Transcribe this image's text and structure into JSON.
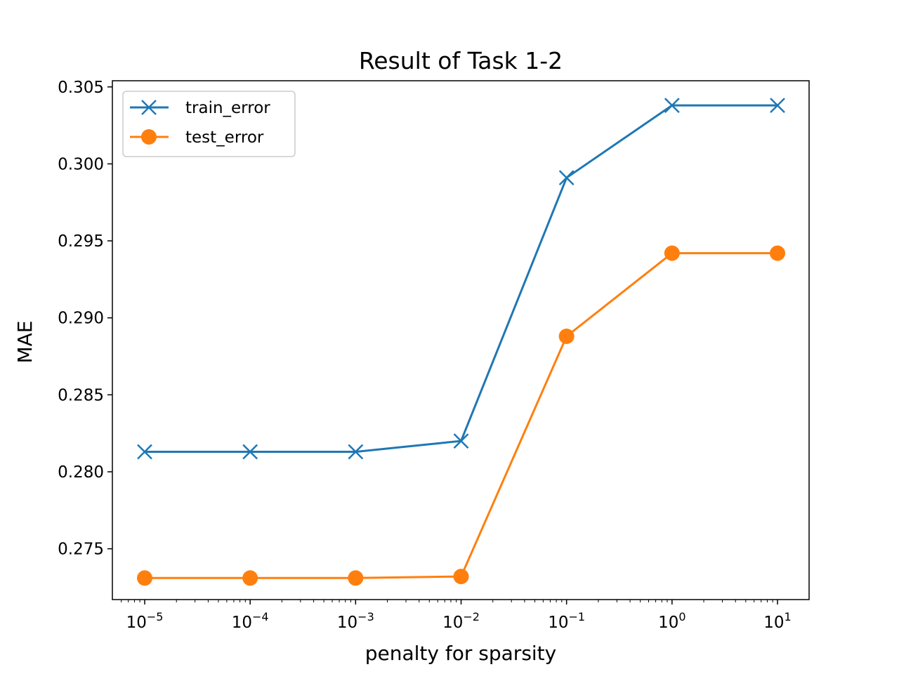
{
  "chart_data": {
    "type": "line",
    "title": "Result of Task 1-2",
    "xlabel": "penalty for sparsity",
    "ylabel": "MAE",
    "xscale": "log",
    "x": [
      1e-05,
      0.0001,
      0.001,
      0.01,
      0.1,
      1,
      10
    ],
    "x_tick_labels": [
      {
        "base": "10",
        "exp": "−5"
      },
      {
        "base": "10",
        "exp": "−4"
      },
      {
        "base": "10",
        "exp": "−3"
      },
      {
        "base": "10",
        "exp": "−2"
      },
      {
        "base": "10",
        "exp": "−1"
      },
      {
        "base": "10",
        "exp": "0"
      },
      {
        "base": "10",
        "exp": "1"
      }
    ],
    "y_ticks": [
      "0.275",
      "0.280",
      "0.285",
      "0.290",
      "0.295",
      "0.300",
      "0.305"
    ],
    "ylim": [
      0.2717,
      0.3054
    ],
    "grid": false,
    "legend_position": "top-left",
    "series": [
      {
        "name": "train_error",
        "marker": "x",
        "color": "#1f77b4",
        "values": [
          0.2813,
          0.2813,
          0.2813,
          0.282,
          0.2991,
          0.3038,
          0.3038
        ]
      },
      {
        "name": "test_error",
        "marker": "o",
        "color": "#ff7f0e",
        "values": [
          0.2731,
          0.2731,
          0.2731,
          0.2732,
          0.2888,
          0.2942,
          0.2942
        ]
      }
    ]
  }
}
